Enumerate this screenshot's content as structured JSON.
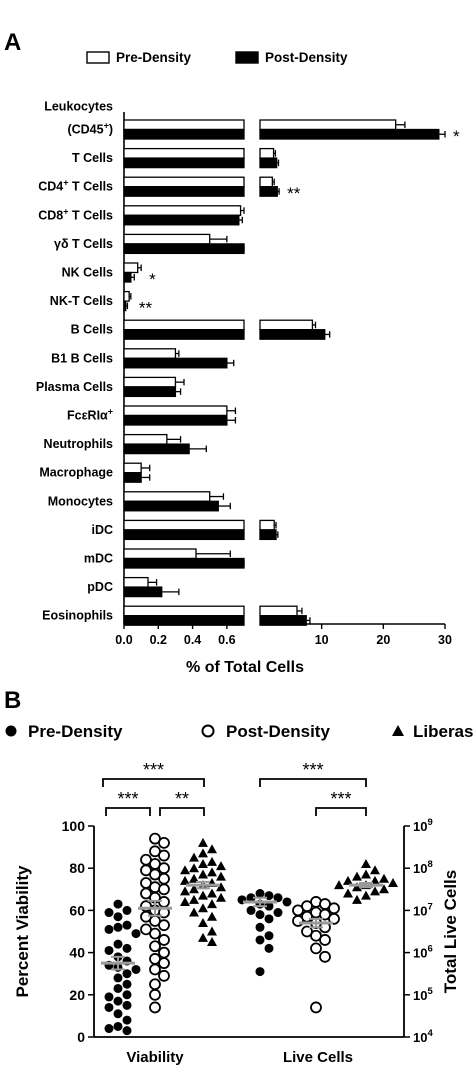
{
  "header": {
    "text": ""
  },
  "panel_a": {
    "letter": "A"
  },
  "panel_b": {
    "letter": "B"
  },
  "colors": {
    "ink": "#000000",
    "fill_open": "#ffffff",
    "mean_line": "#9a9a9a"
  },
  "chart_data": [
    {
      "type": "bar",
      "orientation": "horizontal",
      "xlabel": "% of Total Cells",
      "x_axis_break": true,
      "xlim_left": [
        0,
        0.7
      ],
      "xlim_right": [
        0,
        30
      ],
      "xticks_left": [
        "0.0",
        "0.2",
        "0.4",
        "0.6"
      ],
      "xticks_right": [
        "10",
        "20",
        "30"
      ],
      "legend": {
        "position": "top",
        "entries": [
          "Pre-Density",
          "Post-Density"
        ]
      },
      "series": [
        {
          "name": "Pre-Density",
          "style": "open",
          "values": [
            22,
            2.2,
            2.0,
            0.68,
            0.5,
            0.08,
            0.03,
            8.5,
            0.3,
            0.3,
            0.6,
            0.25,
            0.1,
            0.5,
            2.3,
            0.42,
            0.14,
            6.0
          ],
          "errors": [
            1.5,
            0.3,
            0.3,
            0.02,
            0.1,
            0.02,
            0.01,
            0.5,
            0.02,
            0.05,
            0.05,
            0.08,
            0.05,
            0.08,
            0.3,
            0.2,
            0.05,
            0.8
          ]
        },
        {
          "name": "Post-Density",
          "style": "filled",
          "values": [
            29,
            2.7,
            2.8,
            0.67,
            0.7,
            0.04,
            0.01,
            10.5,
            0.6,
            0.3,
            0.6,
            0.38,
            0.1,
            0.55,
            2.6,
            0.7,
            0.22,
            7.5
          ],
          "errors": [
            1.5,
            0.3,
            0.3,
            0.02,
            0.1,
            0.02,
            0.01,
            0.8,
            0.04,
            0.03,
            0.05,
            0.1,
            0.05,
            0.07,
            0.3,
            0.1,
            0.1,
            0.6
          ]
        }
      ],
      "categories": [
        {
          "label": "(CD45+)",
          "line1": "Leukocytes",
          "main": "(CD45",
          "sup": "+",
          "after": ")",
          "sig": "*"
        },
        {
          "label": "T Cells",
          "main": "T Cells",
          "sig": ""
        },
        {
          "label": "CD4+ T Cells",
          "main": "CD4",
          "sup": "+",
          "after": " T Cells",
          "sig": "**"
        },
        {
          "label": "CD8+ T Cells",
          "main": "CD8",
          "sup": "+",
          "after": " T Cells",
          "sig": ""
        },
        {
          "label": "γδ T Cells",
          "main": "γδ T Cells",
          "sig": ""
        },
        {
          "label": "NK Cells",
          "main": "NK Cells",
          "sig": "*"
        },
        {
          "label": "NK-T Cells",
          "main": "NK-T Cells",
          "sig": "**"
        },
        {
          "label": "B Cells",
          "main": "B Cells",
          "sig": ""
        },
        {
          "label": "B1 B Cells",
          "main": "B1 B Cells",
          "sig": ""
        },
        {
          "label": "Plasma Cells",
          "main": "Plasma Cells",
          "sig": ""
        },
        {
          "label": "FcεRIα+",
          "main": "FcεRIα",
          "sup": "+",
          "after": "",
          "sig": ""
        },
        {
          "label": "Neutrophils",
          "main": "Neutrophils",
          "sig": ""
        },
        {
          "label": "Macrophage",
          "main": "Macrophage",
          "sig": ""
        },
        {
          "label": "Monocytes",
          "main": "Monocytes",
          "sig": ""
        },
        {
          "label": "iDC",
          "main": "iDC",
          "sig": ""
        },
        {
          "label": "mDC",
          "main": "mDC",
          "sig": ""
        },
        {
          "label": "pDC",
          "main": "pDC",
          "sig": ""
        },
        {
          "label": "Eosinophils",
          "main": "Eosinophils",
          "sig": ""
        }
      ]
    },
    {
      "type": "scatter",
      "subtype": "dot-plot",
      "ylabel_left": "Percent Viability",
      "ylabel_right": "Total  Live Cells",
      "ylim_left": [
        0,
        100
      ],
      "yticks_left": [
        "0",
        "20",
        "40",
        "60",
        "80",
        "100"
      ],
      "ylim_right_log10": [
        4,
        9
      ],
      "yticks_right": [
        {
          "base": "10",
          "exp": "4"
        },
        {
          "base": "10",
          "exp": "5"
        },
        {
          "base": "10",
          "exp": "6"
        },
        {
          "base": "10",
          "exp": "7"
        },
        {
          "base": "10",
          "exp": "8"
        },
        {
          "base": "10",
          "exp": "9"
        }
      ],
      "group_labels": [
        "Viability",
        "Live Cells"
      ],
      "legend": {
        "position": "top",
        "entries": [
          {
            "name": "Pre-Density",
            "marker": "filled-circle"
          },
          {
            "name": "Post-Density",
            "marker": "open-circle"
          },
          {
            "name": "Liberase",
            "marker": "filled-triangle"
          }
        ]
      },
      "groups": [
        {
          "group": "Viability",
          "axis": "left",
          "series": [
            {
              "name": "Pre-Density",
              "marker": "filled-circle",
              "mean": 35,
              "sem": 3,
              "values": [
                63,
                60,
                59,
                57,
                53,
                52,
                51,
                49,
                44,
                42,
                41,
                38,
                36,
                34,
                33,
                32,
                30,
                28,
                25,
                23,
                20,
                19,
                17,
                15,
                14,
                11,
                8,
                5,
                4,
                3
              ]
            },
            {
              "name": "Post-Density",
              "marker": "open-circle",
              "mean": 61,
              "sem": 3.5,
              "values": [
                94,
                92,
                88,
                86,
                84,
                82,
                80,
                79,
                77,
                75,
                73,
                71,
                70,
                68,
                66,
                64,
                62,
                60,
                59,
                57,
                55,
                53,
                51,
                49,
                46,
                43,
                40,
                37,
                35,
                32,
                29,
                25,
                20,
                14
              ]
            },
            {
              "name": "Liberase",
              "marker": "filled-triangle",
              "mean": 72,
              "sem": 1.5,
              "values": [
                92,
                89,
                87,
                85,
                83,
                82,
                81,
                80,
                79,
                78,
                77,
                76,
                75,
                74,
                73,
                72,
                71,
                70,
                69,
                68,
                67,
                66,
                65,
                64,
                63,
                61,
                59,
                57,
                54,
                50,
                47,
                45
              ]
            }
          ]
        },
        {
          "group": "Live Cells",
          "axis": "right-log10",
          "series": [
            {
              "name": "Pre-Density",
              "marker": "filled-circle",
              "mean": 7.2,
              "sem": 0.1,
              "values": [
                7.4,
                7.35,
                7.3,
                7.3,
                7.25,
                7.2,
                7.15,
                7.1,
                7.0,
                6.95,
                6.9,
                6.8,
                6.6,
                6.4,
                6.3,
                6.1,
                5.55
              ]
            },
            {
              "name": "Post-Density",
              "marker": "open-circle",
              "mean": 6.7,
              "sem": 0.1,
              "values": [
                7.2,
                7.15,
                7.1,
                7.05,
                7.0,
                6.95,
                6.9,
                6.85,
                6.8,
                6.75,
                6.7,
                6.6,
                6.5,
                6.4,
                6.3,
                6.1,
                5.9,
                4.7
              ]
            },
            {
              "name": "Liberase",
              "marker": "filled-triangle",
              "mean": 7.6,
              "sem": 0.05,
              "values": [
                8.1,
                7.95,
                7.85,
                7.8,
                7.75,
                7.7,
                7.7,
                7.65,
                7.6,
                7.6,
                7.55,
                7.5,
                7.45,
                7.4,
                7.35,
                7.25
              ]
            }
          ]
        }
      ],
      "significance": [
        {
          "label": "***",
          "from": "Viability:Pre-Density",
          "to": "Viability:Liberase"
        },
        {
          "label": "***",
          "from": "Viability:Pre-Density",
          "to": "Viability:Post-Density"
        },
        {
          "label": "**",
          "from": "Viability:Post-Density",
          "to": "Viability:Liberase"
        },
        {
          "label": "***",
          "from": "Live Cells:Pre-Density",
          "to": "Live Cells:Liberase"
        },
        {
          "label": "***",
          "from": "Live Cells:Post-Density",
          "to": "Live Cells:Liberase"
        }
      ]
    }
  ]
}
